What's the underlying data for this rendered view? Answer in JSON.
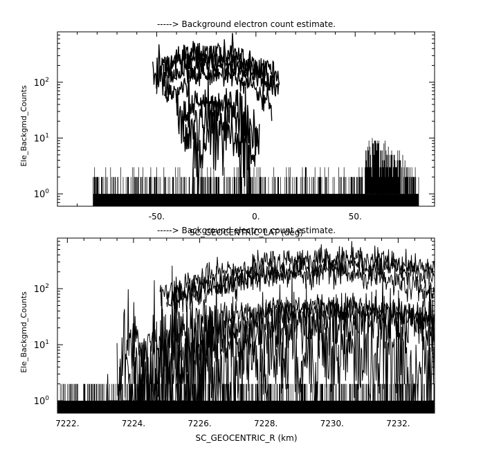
{
  "chart_data": [
    {
      "type": "line",
      "title": "-----> Background electron count estimate.",
      "xlabel": "SC_GEOCENTRIC_LAT (deg)",
      "ylabel": "Ele_Backgmd_Counts",
      "x_scale": "linear",
      "y_scale": "log",
      "xlim": [
        -100,
        90
      ],
      "ylim": [
        0.6,
        800
      ],
      "x_ticks": [
        -50,
        0,
        50
      ],
      "x_tick_labels": [
        "-50.",
        "0.",
        "50."
      ],
      "y_ticks": [
        1,
        10,
        100
      ],
      "y_tick_labels": [
        "10^0",
        "10^1",
        "10^2"
      ],
      "noise_floor": {
        "x_range": [
          -82,
          82
        ],
        "levels": [
          1,
          2,
          3
        ]
      },
      "series": [
        {
          "center": -22,
          "width": 22,
          "peak": 350,
          "x_range": [
            -52,
            12
          ]
        },
        {
          "center": -24,
          "width": 20,
          "peak": 280,
          "x_range": [
            -50,
            10
          ]
        },
        {
          "center": -18,
          "width": 21,
          "peak": 220,
          "x_range": [
            -46,
            12
          ]
        },
        {
          "center": -20,
          "width": 17,
          "peak": 140,
          "x_range": [
            -46,
            8
          ]
        },
        {
          "center": -22,
          "width": 13,
          "peak": 45,
          "x_range": [
            -40,
            2
          ]
        },
        {
          "center": -20,
          "width": 10,
          "peak": 30,
          "x_range": [
            -36,
            0
          ]
        },
        {
          "center": -18,
          "width": 8,
          "peak": 15,
          "x_range": [
            -32,
            -4
          ]
        }
      ],
      "bump": {
        "center": 62,
        "width": 10,
        "peak": 8,
        "x_range": [
          55,
          80
        ]
      },
      "grid": false,
      "legend": "none"
    },
    {
      "type": "line",
      "title": "-----> Background electron count estimate.",
      "xlabel": "SC_GEOCENTRIC_R (km)",
      "ylabel": "Ele_Backgmd_Counts",
      "x_scale": "linear",
      "y_scale": "log",
      "xlim": [
        7221.7,
        7233.1
      ],
      "ylim": [
        0.6,
        800
      ],
      "x_ticks": [
        7222,
        7224,
        7226,
        7228,
        7230,
        7232
      ],
      "x_tick_labels": [
        "7222.",
        "7224.",
        "7226.",
        "7228.",
        "7230.",
        "7232."
      ],
      "y_ticks": [
        1,
        10,
        100
      ],
      "y_tick_labels": [
        "10^0",
        "10^1",
        "10^2"
      ],
      "noise_floor": {
        "x_range": [
          7221.7,
          7233.1
        ],
        "levels": [
          1,
          2
        ]
      },
      "series": [
        {
          "center": 7230.0,
          "width": 3.0,
          "peak": 350,
          "x_range": [
            7224.8,
            7233.1
          ]
        },
        {
          "center": 7230.6,
          "width": 3.2,
          "peak": 250,
          "x_range": [
            7225.0,
            7233.1
          ]
        },
        {
          "center": 7229.4,
          "width": 2.8,
          "peak": 190,
          "x_range": [
            7225.2,
            7233.1
          ]
        },
        {
          "center": 7229.8,
          "width": 3.0,
          "peak": 50,
          "x_range": [
            7223.5,
            7233.1
          ]
        },
        {
          "center": 7230.5,
          "width": 2.8,
          "peak": 40,
          "x_range": [
            7223.8,
            7233.1
          ]
        },
        {
          "center": 7230.6,
          "width": 2.6,
          "peak": 25,
          "x_range": [
            7224.0,
            7233.1
          ]
        },
        {
          "center": 7229.5,
          "width": 2.2,
          "peak": 8,
          "x_range": [
            7223.2,
            7233.1
          ]
        }
      ],
      "grid": false,
      "legend": "none"
    }
  ]
}
